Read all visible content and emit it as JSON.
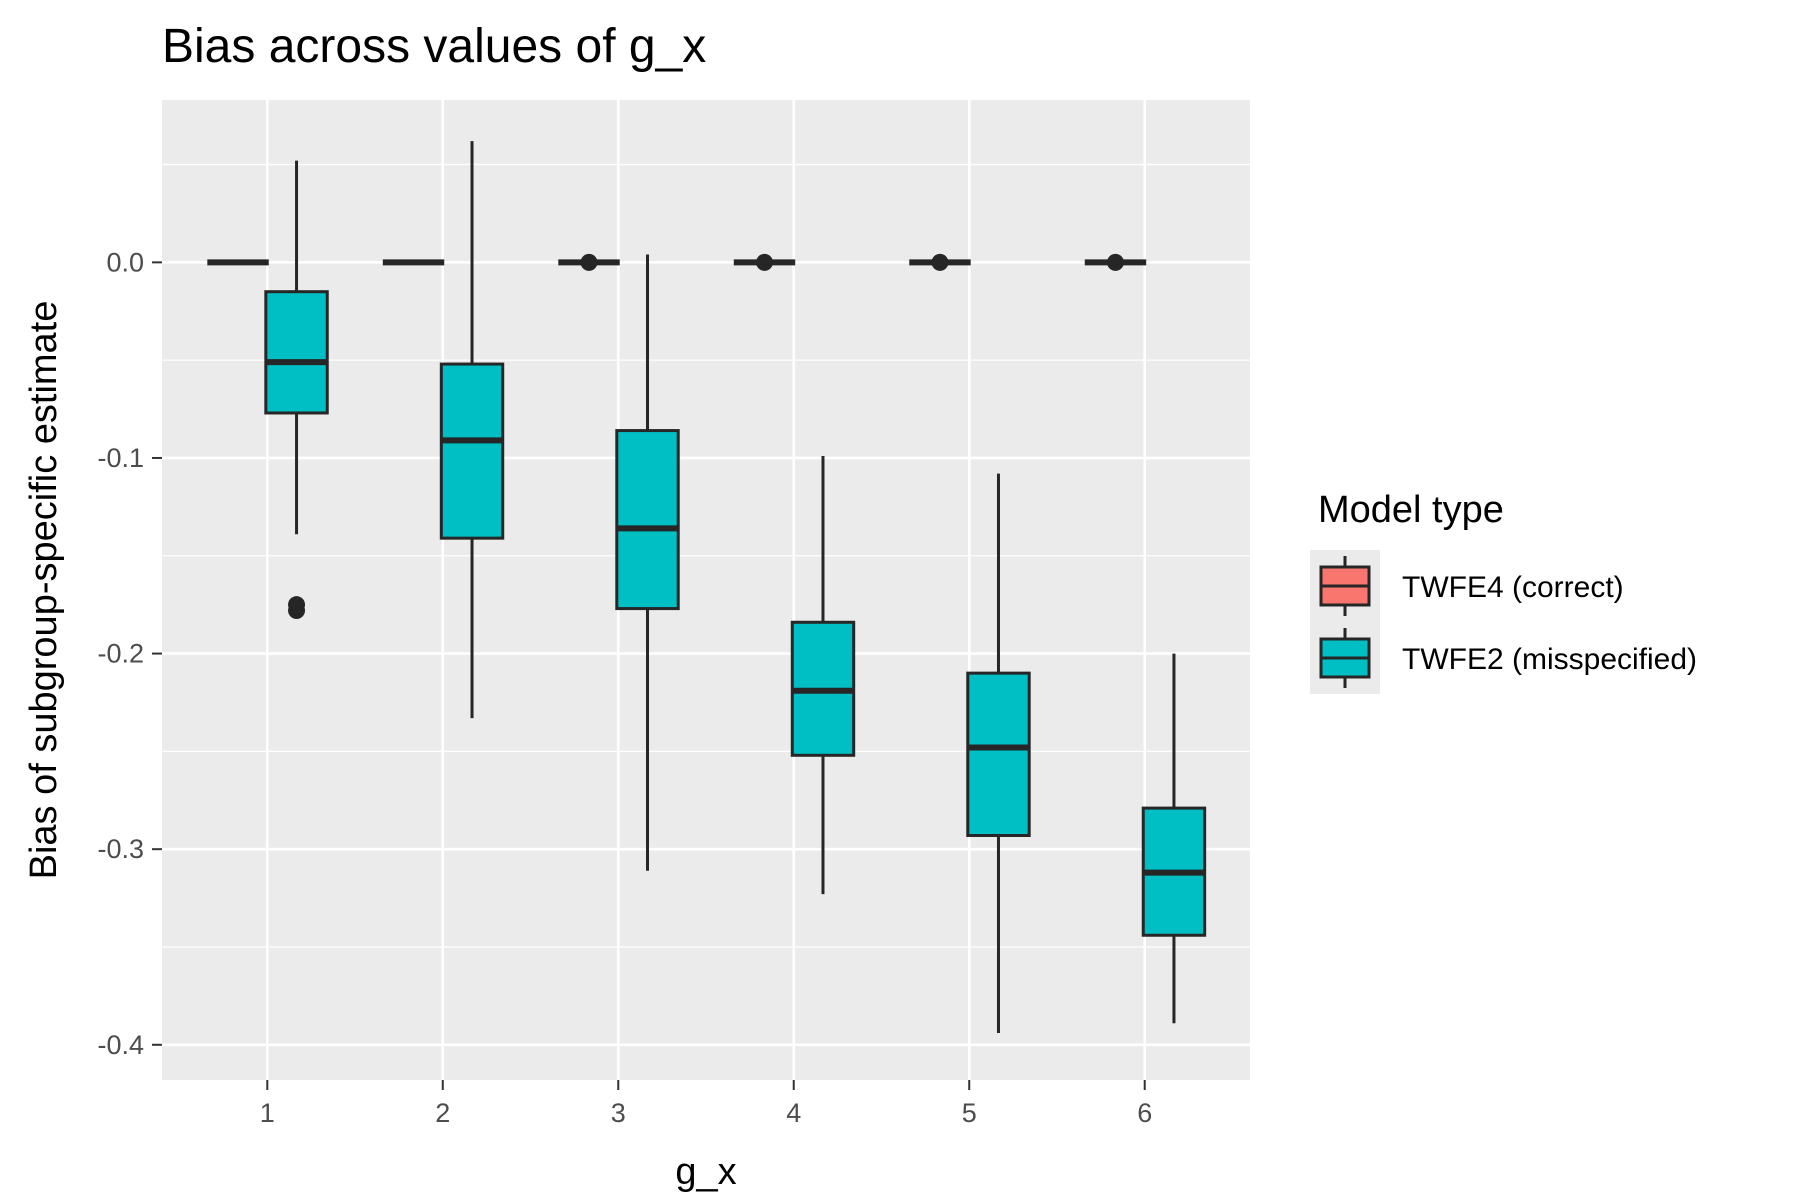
{
  "chart_data": {
    "type": "boxplot",
    "title": "Bias across values of g_x",
    "xlabel": "g_x",
    "ylabel": "Bias of subgroup-specific estimate",
    "categories": [
      "1",
      "2",
      "3",
      "4",
      "5",
      "6"
    ],
    "ylim": [
      -0.418,
      0.083
    ],
    "yticks": [
      0.0,
      -0.1,
      -0.2,
      -0.3,
      -0.4
    ],
    "ytick_labels": [
      "0.0",
      "-0.1",
      "-0.2",
      "-0.3",
      "-0.4"
    ],
    "grid": true,
    "legend": {
      "title": "Model type",
      "position": "right"
    },
    "series": [
      {
        "name": "TWFE4 (correct)",
        "color": "#F8766D",
        "boxes": [
          {
            "x": "1",
            "min": 0.0,
            "q1": 0.0,
            "median": 0.0,
            "q3": 0.0,
            "max": 0.0,
            "outliers": []
          },
          {
            "x": "2",
            "min": 0.0,
            "q1": 0.0,
            "median": 0.0,
            "q3": 0.0,
            "max": 0.0,
            "outliers": []
          },
          {
            "x": "3",
            "min": 0.0,
            "q1": 0.0,
            "median": 0.0,
            "q3": 0.0,
            "max": 0.0,
            "outliers": [
              0.0
            ]
          },
          {
            "x": "4",
            "min": 0.0,
            "q1": 0.0,
            "median": 0.0,
            "q3": 0.0,
            "max": 0.0,
            "outliers": [
              0.0
            ]
          },
          {
            "x": "5",
            "min": 0.0,
            "q1": 0.0,
            "median": 0.0,
            "q3": 0.0,
            "max": 0.0,
            "outliers": [
              0.0
            ]
          },
          {
            "x": "6",
            "min": 0.0,
            "q1": 0.0,
            "median": 0.0,
            "q3": 0.0,
            "max": 0.0,
            "outliers": [
              0.0
            ]
          }
        ]
      },
      {
        "name": "TWFE2 (misspecified)",
        "color": "#00BFC4",
        "boxes": [
          {
            "x": "1",
            "min": -0.139,
            "q1": -0.077,
            "median": -0.051,
            "q3": -0.015,
            "max": 0.052,
            "outliers": [
              -0.175,
              -0.178
            ]
          },
          {
            "x": "2",
            "min": -0.233,
            "q1": -0.141,
            "median": -0.091,
            "q3": -0.052,
            "max": 0.062,
            "outliers": []
          },
          {
            "x": "3",
            "min": -0.311,
            "q1": -0.177,
            "median": -0.136,
            "q3": -0.086,
            "max": 0.004,
            "outliers": []
          },
          {
            "x": "4",
            "min": -0.323,
            "q1": -0.252,
            "median": -0.219,
            "q3": -0.184,
            "max": -0.099,
            "outliers": []
          },
          {
            "x": "5",
            "min": -0.394,
            "q1": -0.293,
            "median": -0.248,
            "q3": -0.21,
            "max": -0.108,
            "outliers": []
          },
          {
            "x": "6",
            "min": -0.389,
            "q1": -0.344,
            "median": -0.312,
            "q3": -0.279,
            "max": -0.2,
            "outliers": []
          }
        ]
      }
    ]
  }
}
